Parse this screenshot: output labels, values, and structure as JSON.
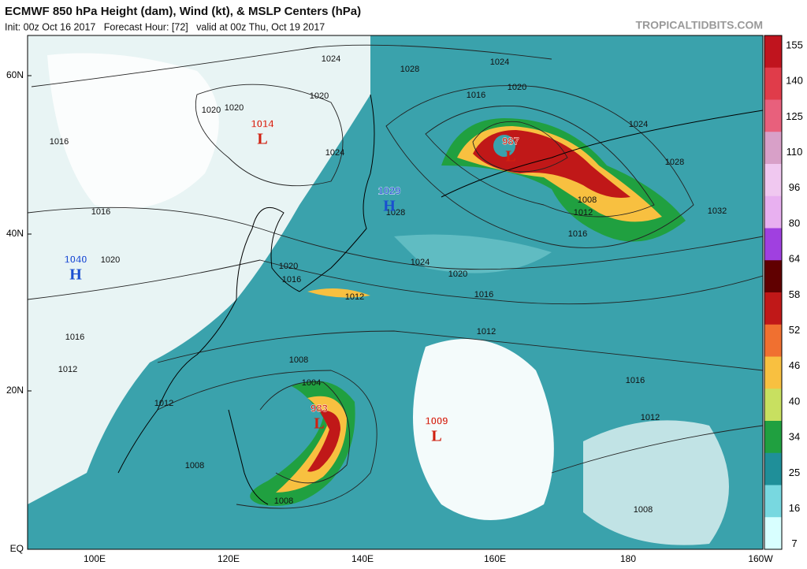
{
  "header": {
    "title": "ECMWF 850 hPa Height (dam), Wind (kt), & MSLP Centers (hPa)",
    "subtitle": "Init: 00z Oct 16 2017   Forecast Hour: [72]   valid at 00z Thu, Oct 19 2017",
    "brand": "TROPICALTIDBITS.COM"
  },
  "map": {
    "lat_labels": [
      "60N",
      "40N",
      "20N",
      "EQ"
    ],
    "lon_labels": [
      "100E",
      "120E",
      "140E",
      "160E",
      "180",
      "160W"
    ],
    "centers": [
      {
        "symbol": "L",
        "value": "1014"
      },
      {
        "symbol": "H",
        "value": "1029"
      },
      {
        "symbol": "H",
        "value": "1040"
      },
      {
        "symbol": "L",
        "value": "987"
      },
      {
        "symbol": "L",
        "value": "983"
      },
      {
        "symbol": "L",
        "value": "1009"
      }
    ],
    "isobar_labels": [
      "1024",
      "1024",
      "1028",
      "1020",
      "1016",
      "1016",
      "1016",
      "1020",
      "1024",
      "1028",
      "1032",
      "1008",
      "1012",
      "1016",
      "1020",
      "1024",
      "1020",
      "1016",
      "1012",
      "1012",
      "1016",
      "1012",
      "1008",
      "1004",
      "1008",
      "1008",
      "1012",
      "1020",
      "1020",
      "1016",
      "1024",
      "1012",
      "1008",
      "1028",
      "1020",
      "1016"
    ]
  },
  "colorbar": {
    "labels": [
      155,
      140,
      125,
      110,
      96,
      80,
      64,
      58,
      52,
      46,
      40,
      34,
      25,
      16,
      7
    ],
    "colors": [
      "#c0141e",
      "#e03c4a",
      "#e8607c",
      "#d8a0c8",
      "#f0c8f0",
      "#e8b0f0",
      "#a040e0",
      "#600000",
      "#c01818",
      "#f07030",
      "#f8c040",
      "#c8e060",
      "#20a040",
      "#1f8f99",
      "#78d8e0",
      "#d8ffff"
    ]
  }
}
